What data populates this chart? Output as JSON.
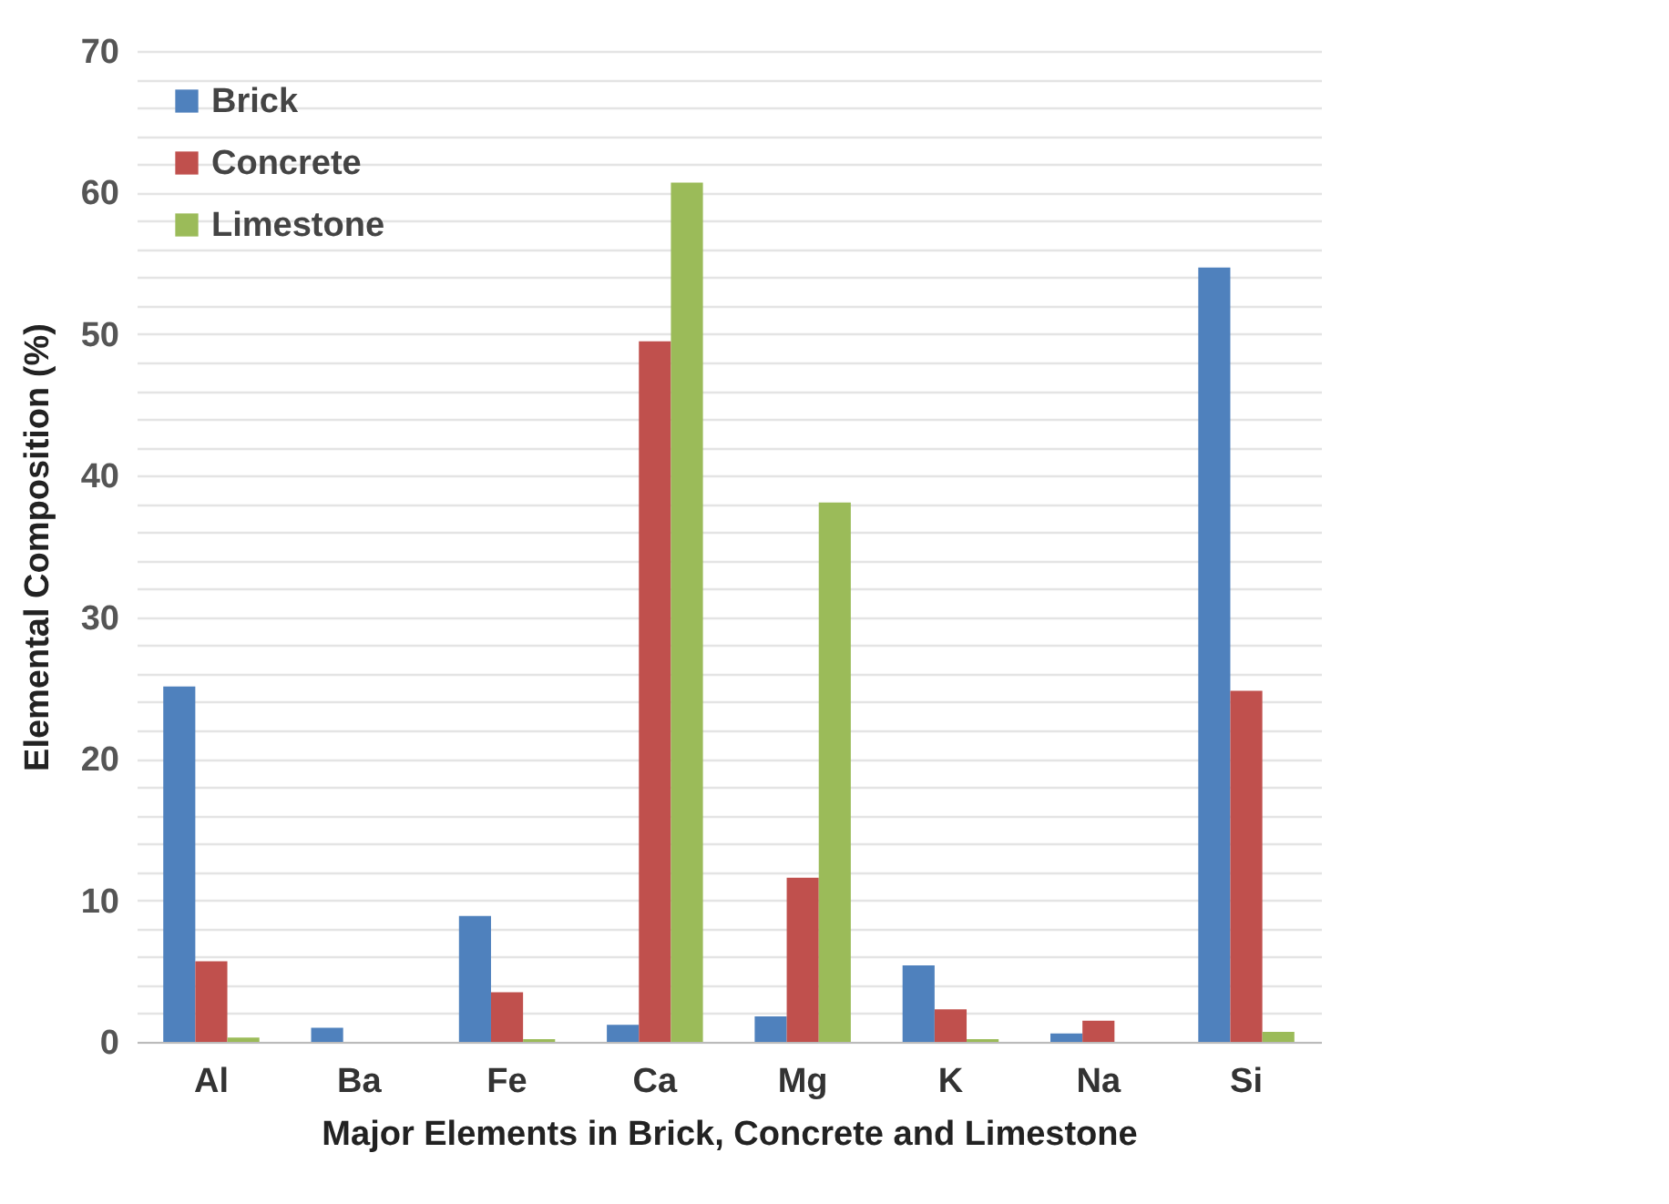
{
  "chart_data": {
    "type": "bar",
    "xlabel": "Major Elements in Brick, Concrete and Limestone",
    "ylabel": "Elemental Composition (%)",
    "categories": [
      "Al",
      "Ba",
      "Fe",
      "Ca",
      "Mg",
      "K",
      "Na",
      "Si"
    ],
    "series": [
      {
        "name": "Brick",
        "color": "#4f81bd",
        "values": [
          25.1,
          1.0,
          8.9,
          1.2,
          1.8,
          5.4,
          0.6,
          54.7
        ]
      },
      {
        "name": "Concrete",
        "color": "#c0504d",
        "values": [
          5.7,
          0,
          3.5,
          49.5,
          11.6,
          2.3,
          1.5,
          24.8
        ]
      },
      {
        "name": "Limestone",
        "color": "#9bbb59",
        "values": [
          0.3,
          0,
          0.2,
          60.7,
          38.1,
          0.2,
          0,
          0.7
        ]
      }
    ],
    "ylim": [
      0,
      70
    ],
    "yticks": [
      0,
      {
        "value": 2,
        "label": null
      },
      {
        "value": 4,
        "label": null
      },
      {
        "value": 6,
        "label": null
      },
      {
        "value": 8,
        "label": null
      },
      10,
      {
        "value": 12,
        "label": null
      },
      {
        "value": 14,
        "label": null
      },
      {
        "value": 16,
        "label": null
      },
      {
        "value": 18,
        "label": null
      },
      20,
      {
        "value": 22,
        "label": null
      },
      {
        "value": 24,
        "label": null
      },
      {
        "value": 26,
        "label": null
      },
      {
        "value": 28,
        "label": null
      },
      30,
      {
        "value": 32,
        "label": null
      },
      {
        "value": 34,
        "label": null
      },
      {
        "value": 36,
        "label": null
      },
      {
        "value": 38,
        "label": null
      },
      40,
      {
        "value": 42,
        "label": null
      },
      {
        "value": 44,
        "label": null
      },
      {
        "value": 46,
        "label": null
      },
      {
        "value": 48,
        "label": null
      },
      50,
      {
        "value": 52,
        "label": null
      },
      {
        "value": 54,
        "label": null
      },
      {
        "value": 56,
        "label": null
      },
      {
        "value": 58,
        "label": null
      },
      60,
      {
        "value": 62,
        "label": null
      },
      {
        "value": 64,
        "label": null
      },
      {
        "value": 66,
        "label": null
      },
      {
        "value": 68,
        "label": null
      },
      70
    ],
    "grid": "y",
    "legend": "top left"
  }
}
